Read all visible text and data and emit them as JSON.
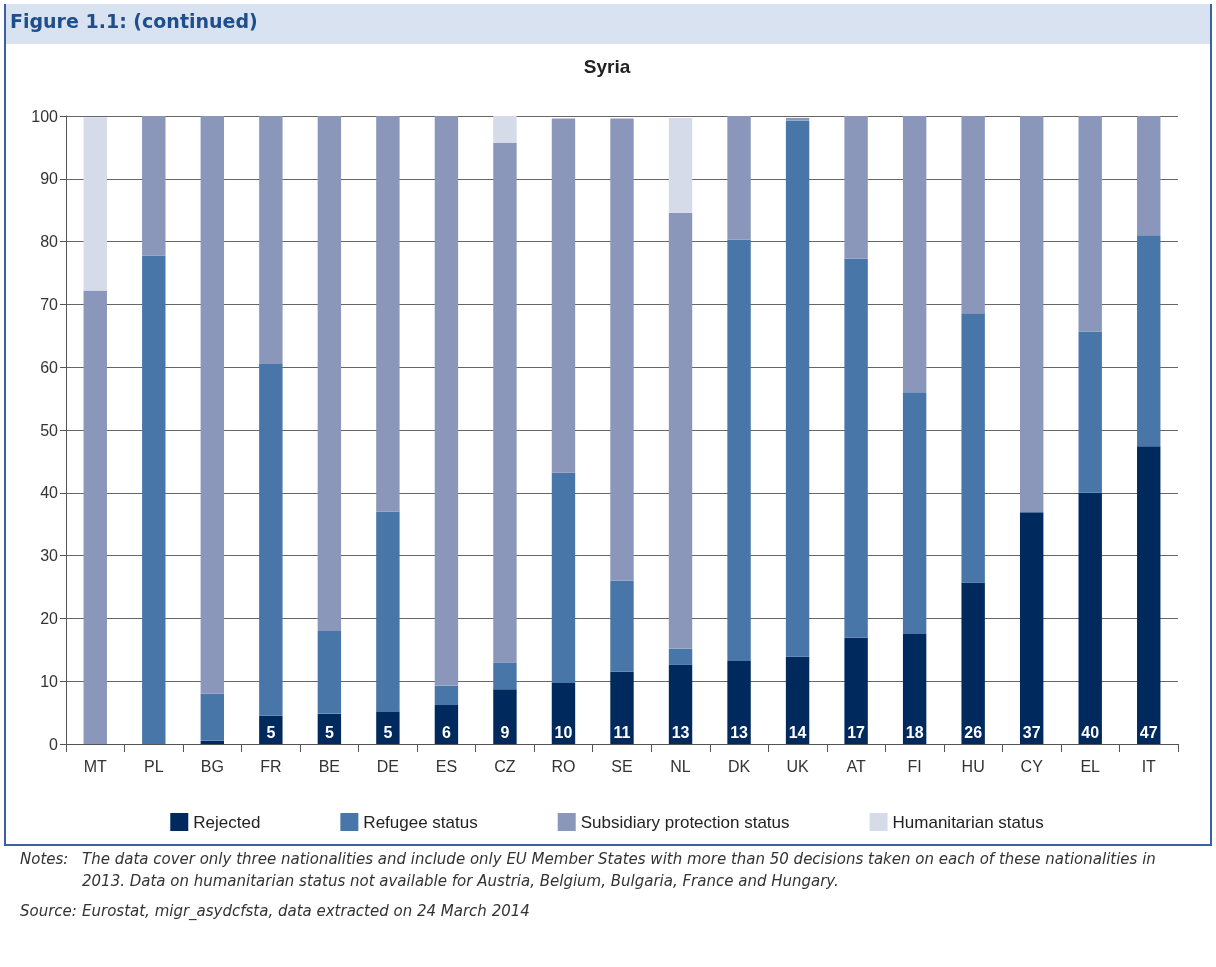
{
  "chart_data": {
    "type": "bar",
    "title": "Figure 1.1: (continued)",
    "subtitle": "Syria",
    "categories": [
      "MT",
      "PL",
      "BG",
      "FR",
      "BE",
      "DE",
      "ES",
      "CZ",
      "RO",
      "SE",
      "NL",
      "DK",
      "UK",
      "AT",
      "FI",
      "HU",
      "CY",
      "EL",
      "IT"
    ],
    "stacked": true,
    "ylim": [
      0,
      100
    ],
    "yticks": [
      0,
      10,
      20,
      30,
      40,
      50,
      60,
      70,
      80,
      90,
      100
    ],
    "grid": "y",
    "legend": "bottom",
    "series": [
      {
        "name": "Rejected",
        "color": "#002a5e",
        "values": [
          0,
          0,
          0.5,
          4.5,
          4.8,
          5.2,
          6.2,
          8.7,
          9.7,
          11.5,
          12.6,
          13.2,
          13.9,
          16.9,
          17.5,
          25.7,
          36.9,
          40,
          47.4
        ],
        "value_labels": [
          null,
          null,
          null,
          "5",
          "5",
          "5",
          "6",
          "9",
          "10",
          "11",
          "13",
          "13",
          "14",
          "17",
          "18",
          "26",
          "37",
          "40",
          "47"
        ]
      },
      {
        "name": "Refugee status",
        "color": "#4876a8",
        "values": [
          0,
          77.8,
          7.5,
          56,
          13.2,
          31.8,
          3.1,
          4.3,
          33.5,
          14.5,
          2.6,
          67.1,
          85.4,
          60.4,
          38.5,
          42.9,
          0,
          25.7,
          33.6
        ]
      },
      {
        "name": "Subsidiary protection status",
        "color": "#8a97ba",
        "values": [
          72.2,
          22.2,
          92,
          39.5,
          82,
          63,
          90.7,
          82.7,
          56.4,
          73.6,
          69.4,
          19.7,
          0.4,
          22.7,
          44,
          31.4,
          63.1,
          34.3,
          19
        ]
      },
      {
        "name": "Humanitarian status",
        "color": "#d5dbe8",
        "values": [
          27.6,
          0,
          0,
          0,
          0,
          0,
          0,
          4.3,
          0,
          0,
          15.1,
          0,
          0,
          0,
          0,
          0,
          0,
          0,
          0
        ]
      }
    ],
    "annotations": [
      "Notes:\tThe data cover only three nationalities and include only EU Member States with more than 50 decisions taken on each of these nationalities in 2013. Data on humanitarian status not available for Austria, Belgium, Bulgaria, France and Hungary.",
      "Source:\tEurostat, migr_asydcfsta, data extracted on 24 March 2014"
    ]
  }
}
